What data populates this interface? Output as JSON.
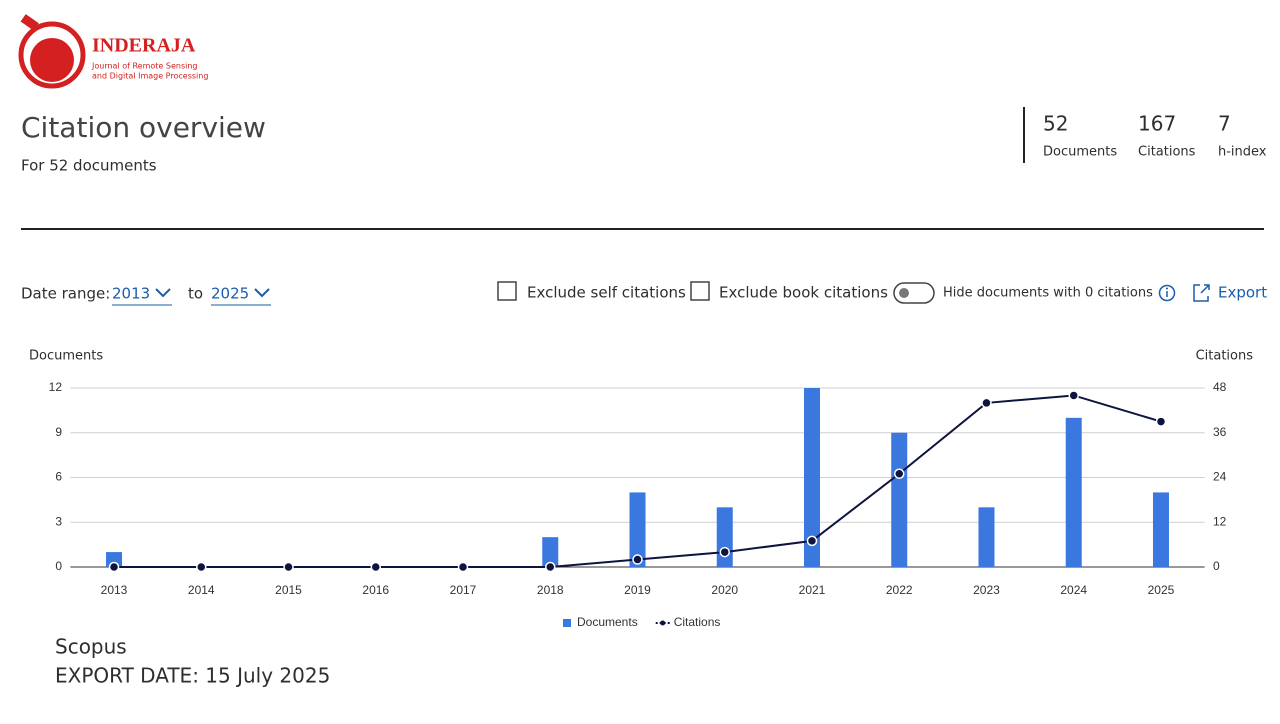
{
  "logo": {
    "name": "INDERAJA",
    "line1": "Journal of Remote Sensing",
    "line2": "and Digital Image Processing"
  },
  "header": {
    "title": "Citation overview",
    "subtitle": "For 52 documents"
  },
  "stats": [
    {
      "value": 52,
      "label": "Documents"
    },
    {
      "value": 167,
      "label": "Citations"
    },
    {
      "value": 7,
      "label": "h-index"
    }
  ],
  "controls": {
    "date_range_label": "Date range:",
    "from": "2013",
    "to_label": "to",
    "to": "2025",
    "exclude_self": "Exclude self citations",
    "exclude_book": "Exclude book citations",
    "hide_zero": "Hide documents with 0 citations",
    "export": "Export"
  },
  "chart_data": {
    "type": "bar-line",
    "y_label": "Documents",
    "y2_label": "Citations",
    "categories": [
      "2013",
      "2014",
      "2015",
      "2016",
      "2017",
      "2018",
      "2019",
      "2020",
      "2021",
      "2022",
      "2023",
      "2024",
      "2025"
    ],
    "series": [
      {
        "name": "Documents",
        "color": "#3a78e0",
        "type": "bar",
        "values": [
          1,
          0,
          0,
          0,
          0,
          2,
          5,
          4,
          12,
          9,
          4,
          10,
          5
        ]
      },
      {
        "name": "Citations",
        "color": "#0d1440",
        "type": "line",
        "axis": "y2",
        "values": [
          0,
          0,
          0,
          0,
          0,
          0,
          2,
          4,
          7,
          25,
          44,
          46,
          39
        ]
      }
    ],
    "ylim": [
      0,
      12
    ],
    "yticks": [
      0,
      3,
      6,
      9,
      12
    ],
    "y2lim": [
      0,
      48
    ],
    "y2ticks": [
      0,
      12,
      24,
      36,
      48
    ],
    "grid": true,
    "legend": "bottom"
  },
  "footer": {
    "source": "Scopus",
    "export_date": "EXPORT DATE: 15 July 2025"
  }
}
